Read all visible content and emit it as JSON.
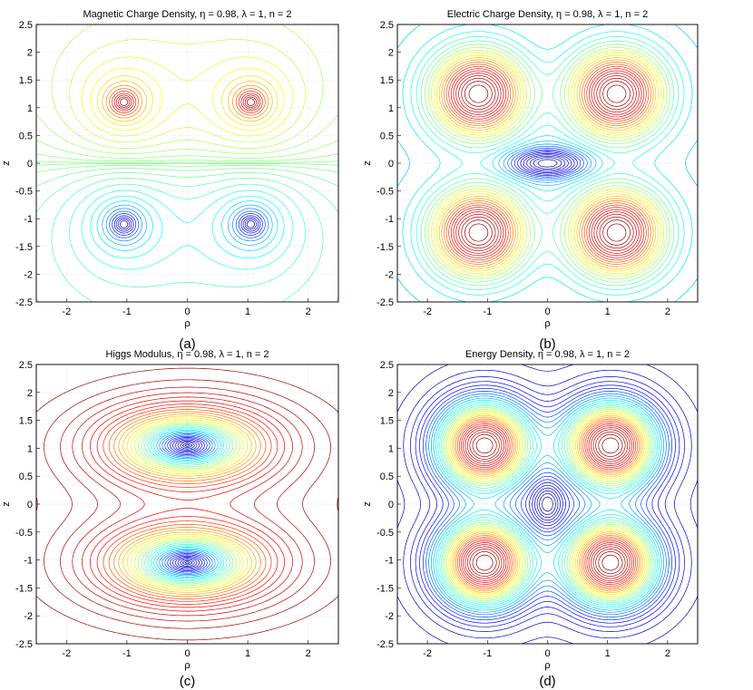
{
  "chart_data": [
    {
      "type": "contour",
      "id": "a",
      "title": "Magnetic Charge Density, η = 0.98, λ = 1, n = 2",
      "xlabel": "ρ",
      "ylabel": "z",
      "panel_label": "(a)",
      "xlim": [
        -2.5,
        2.5
      ],
      "ylim": [
        -2.5,
        2.5
      ],
      "xticks": [
        -2,
        -1,
        0,
        1,
        2
      ],
      "xtick_labels": [
        "-2",
        "-1",
        "0",
        "1",
        "2"
      ],
      "yticks": [
        -2.5,
        -2,
        -1.5,
        -1,
        -0.5,
        0,
        0.5,
        1,
        1.5,
        2,
        2.5
      ],
      "ytick_labels": [
        "-2.5",
        "-2",
        "-1.5",
        "-1",
        "-0.5",
        "0",
        "0.5",
        "1",
        "1.5",
        "2",
        "2.5"
      ],
      "grid": true,
      "colormap": [
        "#00008f",
        "#0000ff",
        "#00ffff",
        "#ffff00",
        "#ff0000",
        "#800000"
      ],
      "centers": [
        {
          "rho": -1.05,
          "z": 1.1,
          "sign": 1
        },
        {
          "rho": 1.05,
          "z": 1.1,
          "sign": 1
        },
        {
          "rho": -1.05,
          "z": -1.1,
          "sign": -1
        },
        {
          "rho": 1.05,
          "z": -1.1,
          "sign": -1
        }
      ]
    },
    {
      "type": "contour",
      "id": "b",
      "title": "Electric Charge Density, η = 0.98, λ = 1, n = 2",
      "xlabel": "ρ",
      "ylabel": "z",
      "panel_label": "(b)",
      "xlim": [
        -2.5,
        2.5
      ],
      "ylim": [
        -2.5,
        2.5
      ],
      "xticks": [
        -2,
        -1,
        0,
        1,
        2
      ],
      "xtick_labels": [
        "-2",
        "-1",
        "0",
        "1",
        "2"
      ],
      "yticks": [
        -2.5,
        -2,
        -1.5,
        -1,
        -0.5,
        0,
        0.5,
        1,
        1.5,
        2,
        2.5
      ],
      "ytick_labels": [
        "-2.5",
        "-2",
        "-1.5",
        "-1",
        "-0.5",
        "0",
        "0.5",
        "1",
        "1.5",
        "2",
        "2.5"
      ],
      "grid": true,
      "colormap": [
        "#00008f",
        "#0000ff",
        "#00ffff",
        "#ffff00",
        "#ff0000",
        "#800000"
      ],
      "centers": [
        {
          "rho": -1.15,
          "z": 1.25
        },
        {
          "rho": 1.15,
          "z": 1.25
        },
        {
          "rho": -1.15,
          "z": -1.25
        },
        {
          "rho": 1.15,
          "z": -1.25
        }
      ],
      "minimum": {
        "rho": 0,
        "z": 0
      }
    },
    {
      "type": "contour",
      "id": "c",
      "title": "Higgs Modulus, η = 0.98, λ = 1, n = 2",
      "xlabel": "ρ",
      "ylabel": "z",
      "panel_label": "(c)",
      "xlim": [
        -2.5,
        2.5
      ],
      "ylim": [
        -2.5,
        2.5
      ],
      "xticks": [
        -2,
        -1,
        0,
        1,
        2
      ],
      "xtick_labels": [
        "-2",
        "-1",
        "0",
        "1",
        "2"
      ],
      "yticks": [
        -2.5,
        -2,
        -1.5,
        -1,
        -0.5,
        0,
        0.5,
        1,
        1.5,
        2,
        2.5
      ],
      "ytick_labels": [
        "-2.5",
        "-2",
        "-1.5",
        "-1",
        "-0.5",
        "0",
        "0.5",
        "1",
        "1.5",
        "2",
        "2.5"
      ],
      "grid": true,
      "colormap": [
        "#00008f",
        "#0000ff",
        "#00ffff",
        "#ffff00",
        "#ff0000",
        "#800000"
      ],
      "zeros": [
        {
          "rho": 0,
          "z": 1.05
        },
        {
          "rho": 0,
          "z": -1.05
        }
      ]
    },
    {
      "type": "contour",
      "id": "d",
      "title": "Energy Density, η = 0.98, λ = 1, n = 2",
      "xlabel": "ρ",
      "ylabel": "z",
      "panel_label": "(d)",
      "xlim": [
        -2.5,
        2.5
      ],
      "ylim": [
        -2.5,
        2.5
      ],
      "xticks": [
        -2,
        -1,
        0,
        1,
        2
      ],
      "xtick_labels": [
        "-2",
        "-1",
        "0",
        "1",
        "2"
      ],
      "yticks": [
        -2.5,
        -2,
        -1.5,
        -1,
        -0.5,
        0,
        0.5,
        1,
        1.5,
        2,
        2.5
      ],
      "ytick_labels": [
        "-2.5",
        "-2",
        "-1.5",
        "-1",
        "-0.5",
        "0",
        "0.5",
        "1",
        "1.5",
        "2",
        "2.5"
      ],
      "grid": true,
      "colormap": [
        "#00008f",
        "#0000ff",
        "#00ffff",
        "#ffff00",
        "#ff0000",
        "#800000"
      ],
      "centers": [
        {
          "rho": -1.05,
          "z": 1.05
        },
        {
          "rho": 1.05,
          "z": 1.05
        },
        {
          "rho": -1.05,
          "z": -1.05
        },
        {
          "rho": 1.05,
          "z": -1.05
        }
      ],
      "minimum": {
        "rho": 0,
        "z": 0
      }
    }
  ]
}
